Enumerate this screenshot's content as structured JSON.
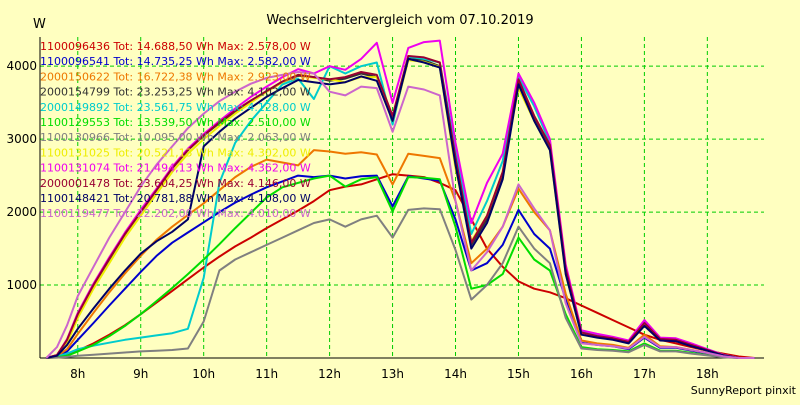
{
  "chart_data": {
    "type": "line",
    "title": "Wechselrichtervergleich vom 07.10.2019",
    "ylabel": "W",
    "footer": "SunnyReport pinxit",
    "ylim": [
      0,
      4400
    ],
    "xlim": [
      7.4,
      18.9
    ],
    "grid": true,
    "legend_placement": "top-left",
    "x_ticks": [
      {
        "value": 8,
        "label": "8h"
      },
      {
        "value": 9,
        "label": "9h"
      },
      {
        "value": 10,
        "label": "10h"
      },
      {
        "value": 11,
        "label": "11h"
      },
      {
        "value": 12,
        "label": "12h"
      },
      {
        "value": 13,
        "label": "13h"
      },
      {
        "value": 14,
        "label": "14h"
      },
      {
        "value": 15,
        "label": "15h"
      },
      {
        "value": 16,
        "label": "16h"
      },
      {
        "value": 17,
        "label": "17h"
      },
      {
        "value": 18,
        "label": "18h"
      }
    ],
    "y_ticks": [
      {
        "value": 1000,
        "label": "1000"
      },
      {
        "value": 2000,
        "label": "2000"
      },
      {
        "value": 3000,
        "label": "3000"
      },
      {
        "value": 4000,
        "label": "4000"
      }
    ],
    "x": [
      7.5,
      7.67,
      7.83,
      8.0,
      8.25,
      8.5,
      8.75,
      9.0,
      9.25,
      9.5,
      9.75,
      10.0,
      10.25,
      10.5,
      10.75,
      11.0,
      11.25,
      11.5,
      11.75,
      12.0,
      12.25,
      12.5,
      12.75,
      13.0,
      13.25,
      13.5,
      13.75,
      14.0,
      14.25,
      14.5,
      14.75,
      15.0,
      15.25,
      15.5,
      15.75,
      16.0,
      16.25,
      16.5,
      16.75,
      17.0,
      17.25,
      17.5,
      17.75,
      18.0,
      18.25,
      18.5,
      18.75
    ],
    "series": [
      {
        "name": "1100096436 Tot: 14.688,50 Wh Max: 2.578,00 W",
        "color": "#cc0000",
        "values": [
          0,
          10,
          40,
          100,
          200,
          320,
          450,
          600,
          760,
          920,
          1080,
          1240,
          1390,
          1530,
          1650,
          1780,
          1900,
          2020,
          2150,
          2300,
          2350,
          2380,
          2450,
          2520,
          2500,
          2480,
          2400,
          2300,
          1900,
          1500,
          1250,
          1050,
          950,
          900,
          820,
          720,
          620,
          520,
          420,
          320,
          250,
          200,
          150,
          100,
          60,
          20,
          0
        ]
      },
      {
        "name": "1100096541 Tot: 14.735,25 Wh Max: 2.582,00 W",
        "color": "#0000cc",
        "values": [
          0,
          20,
          90,
          250,
          480,
          720,
          950,
          1180,
          1400,
          1580,
          1720,
          1860,
          2000,
          2130,
          2240,
          2340,
          2420,
          2500,
          2480,
          2500,
          2460,
          2490,
          2500,
          2080,
          2490,
          2460,
          2430,
          1900,
          1200,
          1300,
          1550,
          2030,
          1700,
          1500,
          800,
          210,
          180,
          160,
          120,
          280,
          140,
          140,
          100,
          60,
          20,
          0,
          0
        ]
      },
      {
        "name": "2000150622 Tot: 16.722,38 Wh Max: 2.923,00 W",
        "color": "#ee7700",
        "values": [
          0,
          25,
          120,
          330,
          620,
          900,
          1160,
          1400,
          1620,
          1800,
          1960,
          2120,
          2300,
          2480,
          2620,
          2720,
          2680,
          2640,
          2850,
          2830,
          2800,
          2820,
          2790,
          2380,
          2800,
          2770,
          2740,
          2150,
          1300,
          1500,
          1800,
          2320,
          2000,
          1750,
          880,
          240,
          200,
          180,
          140,
          320,
          160,
          150,
          110,
          70,
          25,
          0,
          0
        ]
      },
      {
        "name": "2000154799 Tot: 23.253,25 Wh Max: 4.102,00 W",
        "color": "#333333",
        "values": [
          0,
          40,
          250,
          600,
          1000,
          1350,
          1700,
          2000,
          2300,
          2600,
          2850,
          3050,
          3220,
          3380,
          3520,
          3650,
          3780,
          3870,
          3850,
          3800,
          3830,
          3900,
          3850,
          3300,
          4100,
          4080,
          4000,
          2700,
          1550,
          1900,
          2500,
          3800,
          3300,
          2900,
          1200,
          350,
          300,
          270,
          220,
          480,
          260,
          250,
          180,
          110,
          40,
          0,
          0
        ]
      },
      {
        "name": "2000149892 Tot: 23.561,75 Wh Max: 4.128,00 W",
        "color": "#00cccc",
        "values": [
          0,
          20,
          60,
          120,
          170,
          210,
          250,
          280,
          310,
          340,
          400,
          1100,
          2400,
          2950,
          3250,
          3500,
          3750,
          3830,
          3550,
          4000,
          3900,
          4000,
          4050,
          3200,
          4130,
          4100,
          4050,
          2850,
          1700,
          2150,
          2700,
          3850,
          3450,
          2950,
          1250,
          360,
          310,
          280,
          230,
          500,
          270,
          260,
          190,
          120,
          45,
          0,
          0
        ]
      },
      {
        "name": "1100129553 Tot: 13.539,50 Wh Max: 2.510,00 W",
        "color": "#00dd00",
        "values": [
          0,
          10,
          30,
          90,
          180,
          300,
          440,
          600,
          780,
          960,
          1150,
          1350,
          1560,
          1780,
          1990,
          2200,
          2340,
          2400,
          2460,
          2500,
          2350,
          2450,
          2480,
          2010,
          2480,
          2470,
          2450,
          1800,
          950,
          1000,
          1150,
          1650,
          1350,
          1200,
          600,
          150,
          120,
          110,
          90,
          200,
          100,
          100,
          70,
          40,
          15,
          0,
          0
        ]
      },
      {
        "name": "1100130966 Tot: 10.095,00 Wh Max: 2.063,00 W",
        "color": "#808080",
        "values": [
          0,
          5,
          15,
          30,
          45,
          60,
          75,
          90,
          100,
          110,
          130,
          500,
          1200,
          1350,
          1450,
          1550,
          1650,
          1750,
          1850,
          1900,
          1800,
          1900,
          1950,
          1650,
          2030,
          2050,
          2040,
          1480,
          800,
          1000,
          1300,
          1800,
          1500,
          1300,
          550,
          130,
          110,
          100,
          80,
          180,
          90,
          90,
          60,
          35,
          10,
          0,
          0
        ]
      },
      {
        "name": "1100131025 Tot: 20.521,13 Wh Max: 4.302,00 W",
        "color": "#eeee00",
        "values": [
          0,
          30,
          200,
          550,
          950,
          1300,
          1650,
          1950,
          2250,
          2550,
          2800,
          3000,
          3180,
          3350,
          3500,
          3650,
          3780,
          3880,
          3840,
          3820,
          3780,
          3850,
          3850,
          3250,
          4080,
          4060,
          3990,
          2600,
          1600,
          1950,
          2550,
          3700,
          3250,
          2850,
          1150,
          330,
          290,
          260,
          210,
          460,
          250,
          240,
          170,
          100,
          40,
          0,
          0
        ]
      },
      {
        "name": "1100131074 Tot: 21.494,13 Wh Max: 4.362,00 W",
        "color": "#ee00ee",
        "values": [
          0,
          40,
          260,
          620,
          1020,
          1380,
          1720,
          2030,
          2320,
          2620,
          2870,
          3070,
          3250,
          3420,
          3580,
          3720,
          3850,
          3960,
          3900,
          4000,
          3950,
          4100,
          4320,
          3500,
          4250,
          4330,
          4350,
          2950,
          1850,
          2400,
          2800,
          3900,
          3500,
          3000,
          1280,
          380,
          330,
          290,
          240,
          520,
          280,
          270,
          200,
          120,
          45,
          0,
          0
        ]
      },
      {
        "name": "2000001478 Tot: 23.604,25 Wh Max: 4.146,00 W",
        "color": "#990033",
        "values": [
          0,
          40,
          250,
          600,
          1000,
          1360,
          1700,
          2000,
          2300,
          2600,
          2850,
          3050,
          3230,
          3390,
          3530,
          3660,
          3790,
          3880,
          3850,
          3820,
          3850,
          3920,
          3880,
          3320,
          4140,
          4120,
          4050,
          2750,
          1580,
          1950,
          2550,
          3820,
          3320,
          2920,
          1220,
          350,
          300,
          270,
          220,
          480,
          260,
          250,
          180,
          110,
          40,
          0,
          0
        ]
      },
      {
        "name": "1100148421 Tot: 20.781,88 Wh Max: 4.108,00 W",
        "color": "#000066",
        "values": [
          0,
          30,
          180,
          400,
          680,
          950,
          1200,
          1430,
          1600,
          1730,
          1900,
          2900,
          3100,
          3280,
          3430,
          3580,
          3700,
          3810,
          3780,
          3750,
          3780,
          3860,
          3800,
          3250,
          4100,
          4050,
          3980,
          2650,
          1500,
          1850,
          2450,
          3750,
          3250,
          2850,
          1150,
          320,
          280,
          250,
          200,
          440,
          240,
          230,
          160,
          100,
          35,
          0,
          0
        ]
      },
      {
        "name": "1100119477 Tot: 22.202,00 Wh Max: 4.010,00 W",
        "color": "#cc66cc",
        "values": [
          0,
          150,
          450,
          850,
          1250,
          1650,
          2000,
          2350,
          2650,
          2900,
          3150,
          3350,
          3520,
          3650,
          3760,
          3840,
          3880,
          3920,
          3900,
          3650,
          3600,
          3720,
          3700,
          3100,
          3720,
          3680,
          3600,
          2150,
          1200,
          1450,
          1800,
          2380,
          2050,
          1750,
          750,
          200,
          180,
          160,
          130,
          290,
          150,
          150,
          110,
          70,
          25,
          0,
          0
        ]
      }
    ]
  }
}
